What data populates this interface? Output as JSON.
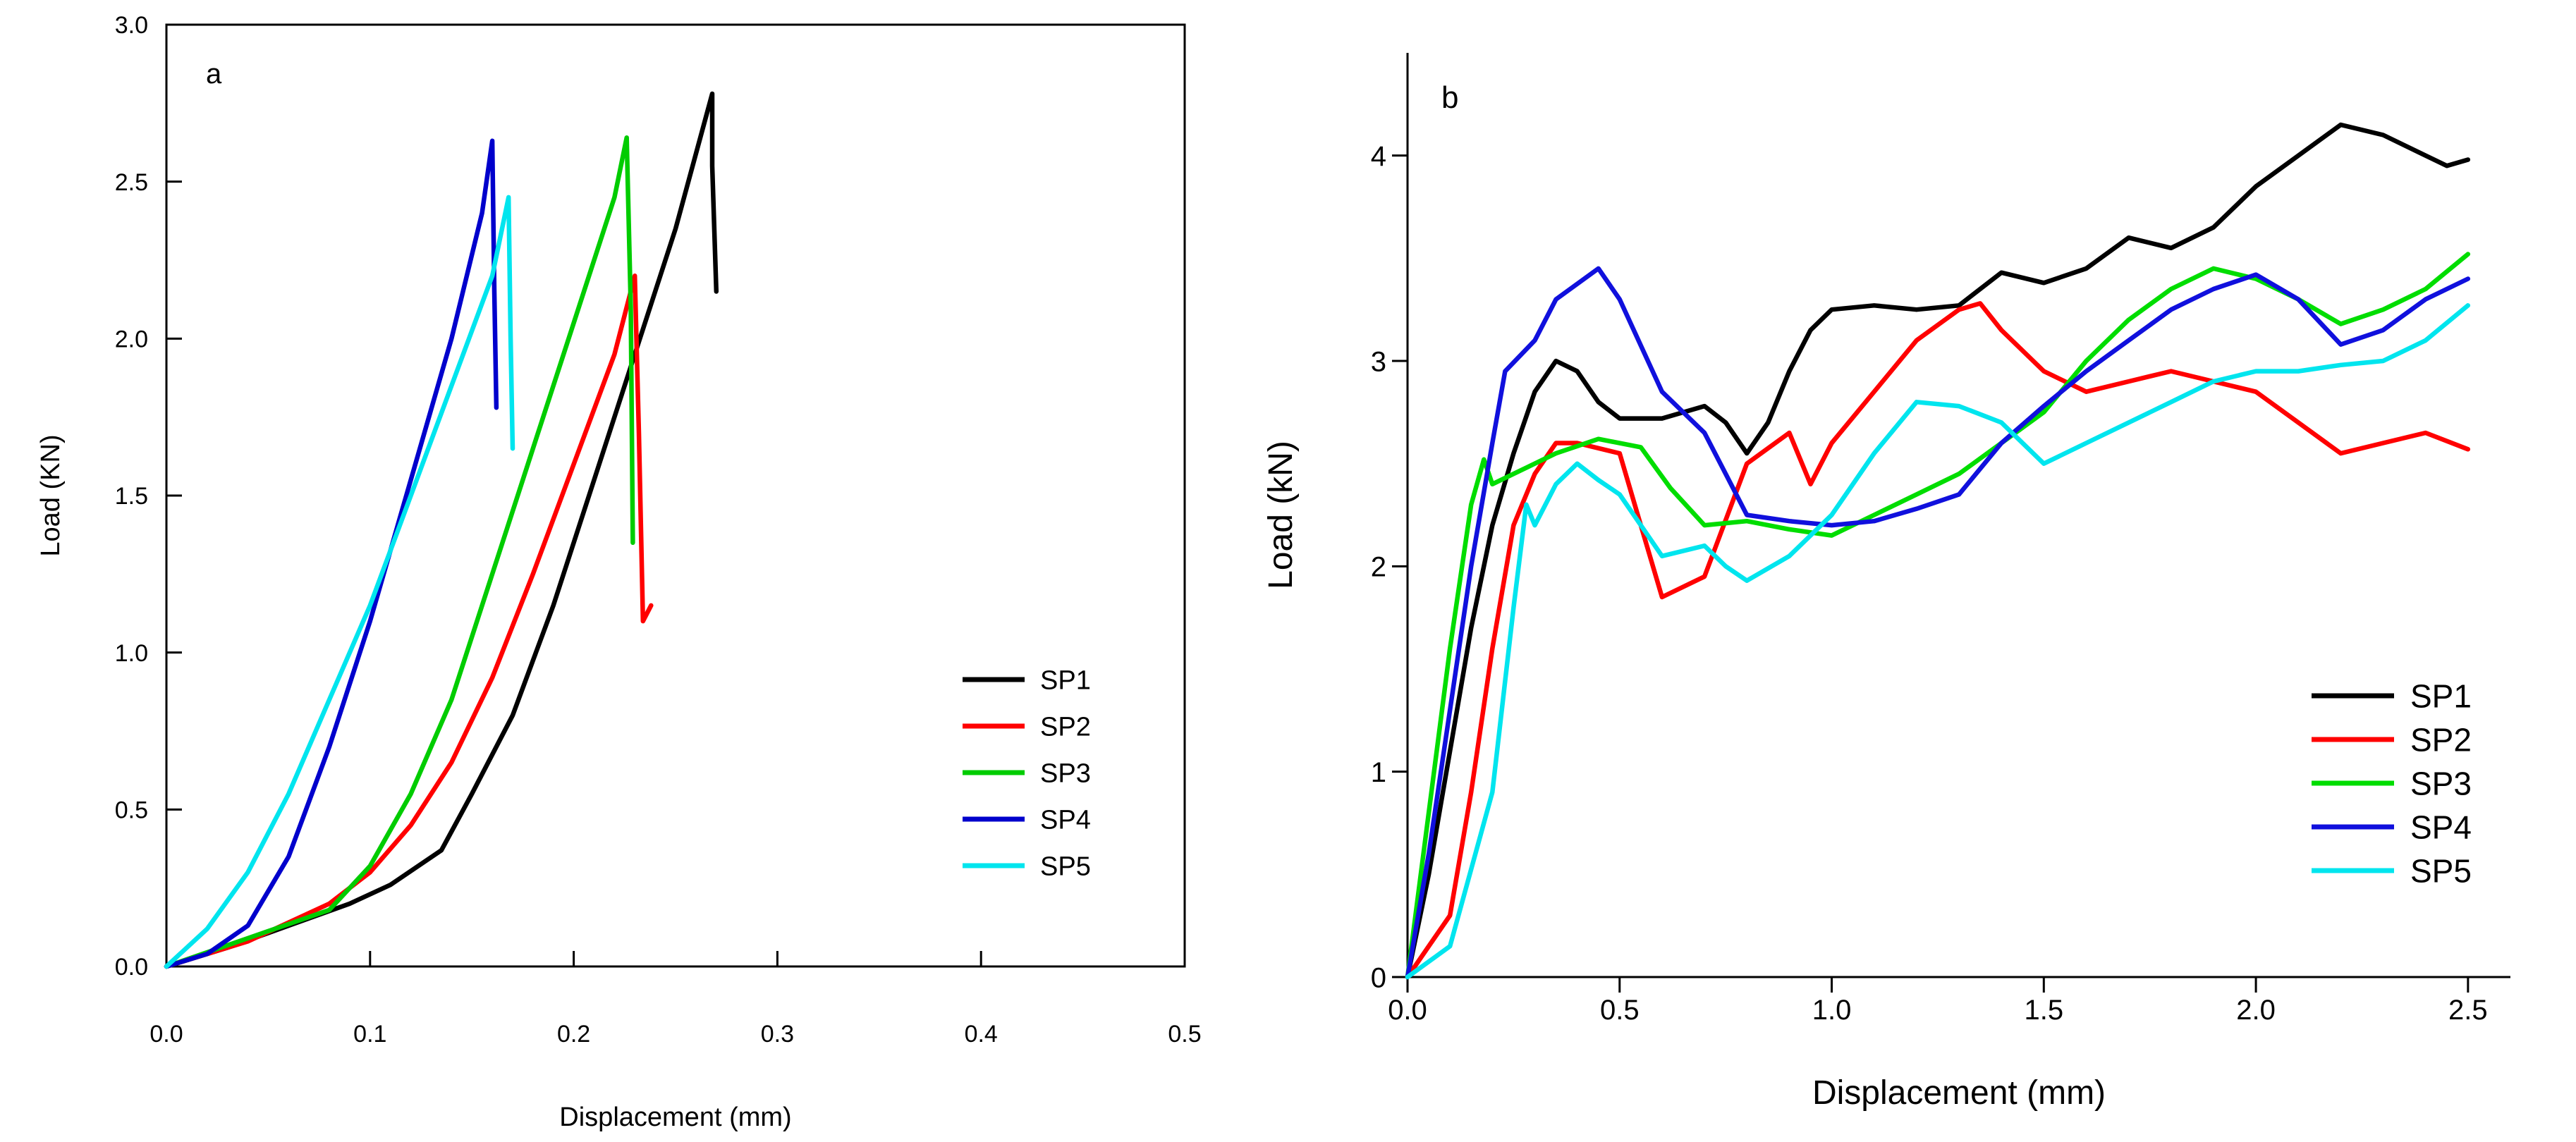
{
  "chart_data": [
    {
      "type": "line",
      "panel_label": "a",
      "xlabel": "Displacement (mm)",
      "ylabel": "Load (KN)",
      "xlim": [
        0,
        0.5
      ],
      "ylim": [
        0,
        3.0
      ],
      "x_ticks": [
        "0.0",
        "0.1",
        "0.2",
        "0.3",
        "0.4",
        "0.5"
      ],
      "y_ticks": [
        "0.0",
        "0.5",
        "1.0",
        "1.5",
        "2.0",
        "2.5",
        "3.0"
      ],
      "grid": false,
      "legend_position": "lower-right",
      "series": [
        {
          "name": "SP1",
          "color": "#000000",
          "points": [
            [
              0,
              0
            ],
            [
              0.03,
              0.06
            ],
            [
              0.06,
              0.13
            ],
            [
              0.09,
              0.2
            ],
            [
              0.11,
              0.26
            ],
            [
              0.135,
              0.37
            ],
            [
              0.15,
              0.55
            ],
            [
              0.17,
              0.8
            ],
            [
              0.19,
              1.15
            ],
            [
              0.21,
              1.55
            ],
            [
              0.23,
              1.95
            ],
            [
              0.25,
              2.35
            ],
            [
              0.268,
              2.78
            ],
            [
              0.268,
              2.55
            ],
            [
              0.27,
              2.15
            ]
          ]
        },
        {
          "name": "SP2",
          "color": "#ff0000",
          "points": [
            [
              0,
              0
            ],
            [
              0.04,
              0.08
            ],
            [
              0.08,
              0.2
            ],
            [
              0.1,
              0.3
            ],
            [
              0.12,
              0.45
            ],
            [
              0.14,
              0.65
            ],
            [
              0.16,
              0.92
            ],
            [
              0.18,
              1.25
            ],
            [
              0.2,
              1.6
            ],
            [
              0.22,
              1.95
            ],
            [
              0.23,
              2.2
            ],
            [
              0.232,
              1.7
            ],
            [
              0.234,
              1.1
            ],
            [
              0.238,
              1.15
            ]
          ]
        },
        {
          "name": "SP3",
          "color": "#00cc00",
          "points": [
            [
              0,
              0
            ],
            [
              0.04,
              0.09
            ],
            [
              0.08,
              0.18
            ],
            [
              0.09,
              0.25
            ],
            [
              0.1,
              0.32
            ],
            [
              0.12,
              0.55
            ],
            [
              0.14,
              0.85
            ],
            [
              0.16,
              1.25
            ],
            [
              0.18,
              1.65
            ],
            [
              0.2,
              2.05
            ],
            [
              0.22,
              2.45
            ],
            [
              0.226,
              2.64
            ],
            [
              0.228,
              2.1
            ],
            [
              0.229,
              1.35
            ]
          ]
        },
        {
          "name": "SP4",
          "color": "#0000cc",
          "points": [
            [
              0,
              0
            ],
            [
              0.02,
              0.04
            ],
            [
              0.04,
              0.13
            ],
            [
              0.06,
              0.35
            ],
            [
              0.08,
              0.7
            ],
            [
              0.1,
              1.1
            ],
            [
              0.12,
              1.55
            ],
            [
              0.14,
              2.0
            ],
            [
              0.155,
              2.4
            ],
            [
              0.16,
              2.63
            ],
            [
              0.161,
              2.15
            ],
            [
              0.162,
              1.78
            ]
          ]
        },
        {
          "name": "SP5",
          "color": "#00e5ee",
          "points": [
            [
              0,
              0
            ],
            [
              0.02,
              0.12
            ],
            [
              0.04,
              0.3
            ],
            [
              0.06,
              0.55
            ],
            [
              0.08,
              0.85
            ],
            [
              0.1,
              1.15
            ],
            [
              0.12,
              1.5
            ],
            [
              0.14,
              1.85
            ],
            [
              0.16,
              2.2
            ],
            [
              0.168,
              2.45
            ],
            [
              0.169,
              2.0
            ],
            [
              0.17,
              1.65
            ]
          ]
        }
      ]
    },
    {
      "type": "line",
      "panel_label": "b",
      "xlabel": "Displacement (mm)",
      "ylabel": "Load (kN)",
      "xlim": [
        0,
        2.6
      ],
      "ylim": [
        0,
        4.5
      ],
      "x_ticks": [
        "0.0",
        "0.5",
        "1.0",
        "1.5",
        "2.0",
        "2.5"
      ],
      "y_ticks": [
        "0",
        "1",
        "2",
        "3",
        "4"
      ],
      "grid": false,
      "legend_position": "lower-right",
      "series": [
        {
          "name": "SP1",
          "color": "#000000",
          "points": [
            [
              0,
              0
            ],
            [
              0.05,
              0.5
            ],
            [
              0.1,
              1.1
            ],
            [
              0.15,
              1.7
            ],
            [
              0.2,
              2.2
            ],
            [
              0.25,
              2.55
            ],
            [
              0.3,
              2.85
            ],
            [
              0.35,
              3.0
            ],
            [
              0.4,
              2.95
            ],
            [
              0.45,
              2.8
            ],
            [
              0.5,
              2.72
            ],
            [
              0.6,
              2.72
            ],
            [
              0.7,
              2.78
            ],
            [
              0.75,
              2.7
            ],
            [
              0.8,
              2.55
            ],
            [
              0.85,
              2.7
            ],
            [
              0.9,
              2.95
            ],
            [
              0.95,
              3.15
            ],
            [
              1.0,
              3.25
            ],
            [
              1.1,
              3.27
            ],
            [
              1.2,
              3.25
            ],
            [
              1.3,
              3.27
            ],
            [
              1.4,
              3.43
            ],
            [
              1.5,
              3.38
            ],
            [
              1.6,
              3.45
            ],
            [
              1.7,
              3.6
            ],
            [
              1.8,
              3.55
            ],
            [
              1.9,
              3.65
            ],
            [
              2.0,
              3.85
            ],
            [
              2.1,
              4.0
            ],
            [
              2.2,
              4.15
            ],
            [
              2.3,
              4.1
            ],
            [
              2.4,
              4.0
            ],
            [
              2.45,
              3.95
            ],
            [
              2.5,
              3.98
            ]
          ]
        },
        {
          "name": "SP2",
          "color": "#ff0000",
          "points": [
            [
              0,
              0
            ],
            [
              0.1,
              0.3
            ],
            [
              0.15,
              0.9
            ],
            [
              0.2,
              1.6
            ],
            [
              0.25,
              2.2
            ],
            [
              0.3,
              2.45
            ],
            [
              0.35,
              2.6
            ],
            [
              0.4,
              2.6
            ],
            [
              0.5,
              2.55
            ],
            [
              0.55,
              2.2
            ],
            [
              0.6,
              1.85
            ],
            [
              0.7,
              1.95
            ],
            [
              0.8,
              2.5
            ],
            [
              0.9,
              2.65
            ],
            [
              0.95,
              2.4
            ],
            [
              1.0,
              2.6
            ],
            [
              1.1,
              2.85
            ],
            [
              1.2,
              3.1
            ],
            [
              1.3,
              3.25
            ],
            [
              1.35,
              3.28
            ],
            [
              1.4,
              3.15
            ],
            [
              1.5,
              2.95
            ],
            [
              1.6,
              2.85
            ],
            [
              1.7,
              2.9
            ],
            [
              1.8,
              2.95
            ],
            [
              1.9,
              2.9
            ],
            [
              2.0,
              2.85
            ],
            [
              2.1,
              2.7
            ],
            [
              2.2,
              2.55
            ],
            [
              2.3,
              2.6
            ],
            [
              2.4,
              2.65
            ],
            [
              2.5,
              2.57
            ]
          ]
        },
        {
          "name": "SP3",
          "color": "#00dd00",
          "points": [
            [
              0,
              0
            ],
            [
              0.05,
              0.8
            ],
            [
              0.1,
              1.6
            ],
            [
              0.15,
              2.3
            ],
            [
              0.18,
              2.52
            ],
            [
              0.2,
              2.4
            ],
            [
              0.25,
              2.45
            ],
            [
              0.35,
              2.55
            ],
            [
              0.45,
              2.62
            ],
            [
              0.55,
              2.58
            ],
            [
              0.62,
              2.38
            ],
            [
              0.7,
              2.2
            ],
            [
              0.8,
              2.22
            ],
            [
              0.9,
              2.18
            ],
            [
              1.0,
              2.15
            ],
            [
              1.1,
              2.25
            ],
            [
              1.2,
              2.35
            ],
            [
              1.3,
              2.45
            ],
            [
              1.4,
              2.6
            ],
            [
              1.5,
              2.75
            ],
            [
              1.6,
              3.0
            ],
            [
              1.7,
              3.2
            ],
            [
              1.8,
              3.35
            ],
            [
              1.9,
              3.45
            ],
            [
              2.0,
              3.4
            ],
            [
              2.1,
              3.3
            ],
            [
              2.2,
              3.18
            ],
            [
              2.3,
              3.25
            ],
            [
              2.4,
              3.35
            ],
            [
              2.5,
              3.52
            ]
          ]
        },
        {
          "name": "SP4",
          "color": "#1010dd",
          "points": [
            [
              0,
              0
            ],
            [
              0.05,
              0.6
            ],
            [
              0.1,
              1.3
            ],
            [
              0.15,
              2.0
            ],
            [
              0.2,
              2.6
            ],
            [
              0.23,
              2.95
            ],
            [
              0.3,
              3.1
            ],
            [
              0.35,
              3.3
            ],
            [
              0.45,
              3.45
            ],
            [
              0.5,
              3.3
            ],
            [
              0.6,
              2.85
            ],
            [
              0.7,
              2.65
            ],
            [
              0.75,
              2.45
            ],
            [
              0.8,
              2.25
            ],
            [
              0.9,
              2.22
            ],
            [
              1.0,
              2.2
            ],
            [
              1.1,
              2.22
            ],
            [
              1.2,
              2.28
            ],
            [
              1.3,
              2.35
            ],
            [
              1.4,
              2.6
            ],
            [
              1.5,
              2.78
            ],
            [
              1.6,
              2.95
            ],
            [
              1.7,
              3.1
            ],
            [
              1.8,
              3.25
            ],
            [
              1.9,
              3.35
            ],
            [
              2.0,
              3.42
            ],
            [
              2.1,
              3.3
            ],
            [
              2.2,
              3.08
            ],
            [
              2.3,
              3.15
            ],
            [
              2.4,
              3.3
            ],
            [
              2.5,
              3.4
            ]
          ]
        },
        {
          "name": "SP5",
          "color": "#00e5ee",
          "points": [
            [
              0,
              0
            ],
            [
              0.1,
              0.15
            ],
            [
              0.2,
              0.9
            ],
            [
              0.25,
              1.8
            ],
            [
              0.28,
              2.3
            ],
            [
              0.3,
              2.2
            ],
            [
              0.35,
              2.4
            ],
            [
              0.4,
              2.5
            ],
            [
              0.45,
              2.42
            ],
            [
              0.5,
              2.35
            ],
            [
              0.6,
              2.05
            ],
            [
              0.7,
              2.1
            ],
            [
              0.75,
              2.0
            ],
            [
              0.8,
              1.93
            ],
            [
              0.9,
              2.05
            ],
            [
              1.0,
              2.25
            ],
            [
              1.1,
              2.55
            ],
            [
              1.2,
              2.8
            ],
            [
              1.3,
              2.78
            ],
            [
              1.4,
              2.7
            ],
            [
              1.5,
              2.5
            ],
            [
              1.6,
              2.6
            ],
            [
              1.7,
              2.7
            ],
            [
              1.8,
              2.8
            ],
            [
              1.9,
              2.9
            ],
            [
              2.0,
              2.95
            ],
            [
              2.1,
              2.95
            ],
            [
              2.2,
              2.98
            ],
            [
              2.3,
              3.0
            ],
            [
              2.4,
              3.1
            ],
            [
              2.5,
              3.27
            ]
          ]
        }
      ]
    }
  ]
}
